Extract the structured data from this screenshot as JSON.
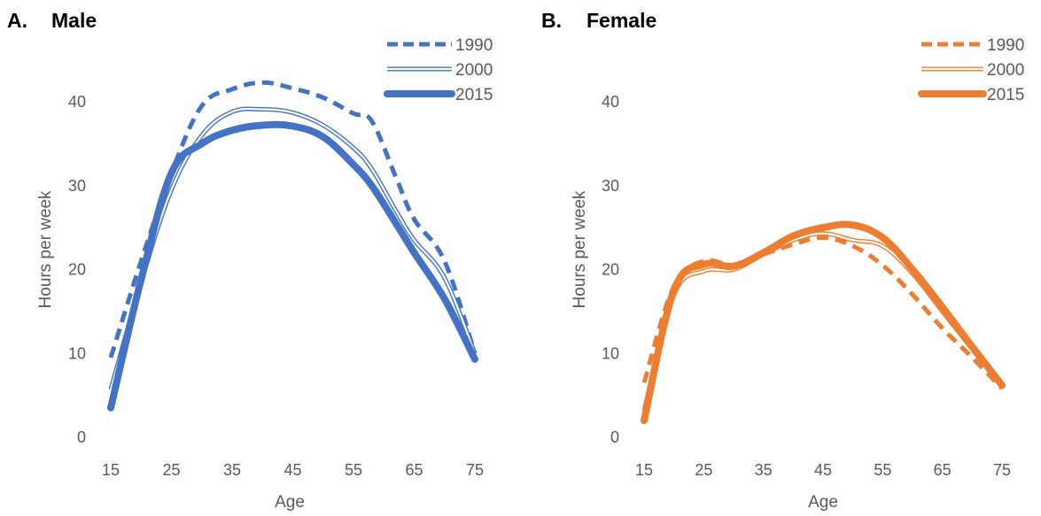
{
  "chart_data": [
    {
      "type": "line",
      "panel_label": "A.",
      "title": "Male",
      "xlabel": "Age",
      "ylabel": "Hours per week",
      "xlim": [
        15,
        75
      ],
      "ylim": [
        0,
        40
      ],
      "x_ticks": [
        15,
        25,
        35,
        45,
        55,
        65,
        75
      ],
      "y_ticks": [
        0,
        10,
        20,
        30,
        40
      ],
      "grid": false,
      "legend_position": "top-right",
      "color": "#4472C4",
      "series": [
        {
          "name": "1990",
          "style": "dashed",
          "x": [
            15,
            20,
            25,
            30,
            35,
            40,
            45,
            50,
            55,
            58,
            62,
            65,
            70,
            75
          ],
          "y": [
            9.5,
            21,
            31.5,
            39.5,
            41.5,
            42.3,
            41.6,
            40.5,
            38.6,
            37.7,
            31,
            26,
            21,
            10
          ]
        },
        {
          "name": "2000",
          "style": "double",
          "x": [
            15,
            20,
            25,
            30,
            35,
            40,
            45,
            50,
            55,
            58,
            62,
            65,
            70,
            75
          ],
          "y": [
            5.7,
            18.5,
            29.5,
            36,
            38.8,
            39.1,
            38.7,
            37.2,
            34.5,
            32,
            27,
            23.5,
            19,
            10
          ]
        },
        {
          "name": "2015",
          "style": "thick",
          "x": [
            15,
            20,
            25,
            30,
            35,
            40,
            45,
            50,
            55,
            58,
            62,
            65,
            70,
            75
          ],
          "y": [
            3.5,
            18.8,
            31.5,
            35,
            36.6,
            37.2,
            37.1,
            35.8,
            32.5,
            30,
            25.5,
            22,
            16.5,
            9.3
          ]
        }
      ]
    },
    {
      "type": "line",
      "panel_label": "B.",
      "title": "Female",
      "xlabel": "Age",
      "ylabel": "Hours per week",
      "xlim": [
        15,
        75
      ],
      "ylim": [
        0,
        40
      ],
      "x_ticks": [
        15,
        25,
        35,
        45,
        55,
        65,
        75
      ],
      "y_ticks": [
        0,
        10,
        20,
        30,
        40
      ],
      "grid": false,
      "legend_position": "top-right",
      "color": "#ED7D31",
      "series": [
        {
          "name": "1990",
          "style": "dashed",
          "x": [
            15,
            20,
            25,
            30,
            35,
            40,
            45,
            50,
            55,
            60,
            65,
            70,
            75
          ],
          "y": [
            6.5,
            18,
            21,
            20.5,
            21.8,
            23,
            23.8,
            22.8,
            20.5,
            17,
            13,
            9.5,
            5.8
          ]
        },
        {
          "name": "2000",
          "style": "double",
          "x": [
            15,
            20,
            25,
            30,
            35,
            40,
            45,
            50,
            55,
            60,
            65,
            70,
            75
          ],
          "y": [
            3.2,
            17,
            19.8,
            20,
            21.8,
            23.5,
            24.3,
            23.5,
            22.8,
            19.5,
            15,
            10.5,
            6
          ]
        },
        {
          "name": "2015",
          "style": "thick",
          "x": [
            15,
            20,
            25,
            30,
            35,
            40,
            45,
            50,
            55,
            60,
            65,
            70,
            75
          ],
          "y": [
            2,
            17.5,
            20.6,
            20.4,
            22,
            24,
            25,
            25.3,
            23.8,
            20,
            15.5,
            10.8,
            6.2
          ]
        }
      ]
    }
  ]
}
